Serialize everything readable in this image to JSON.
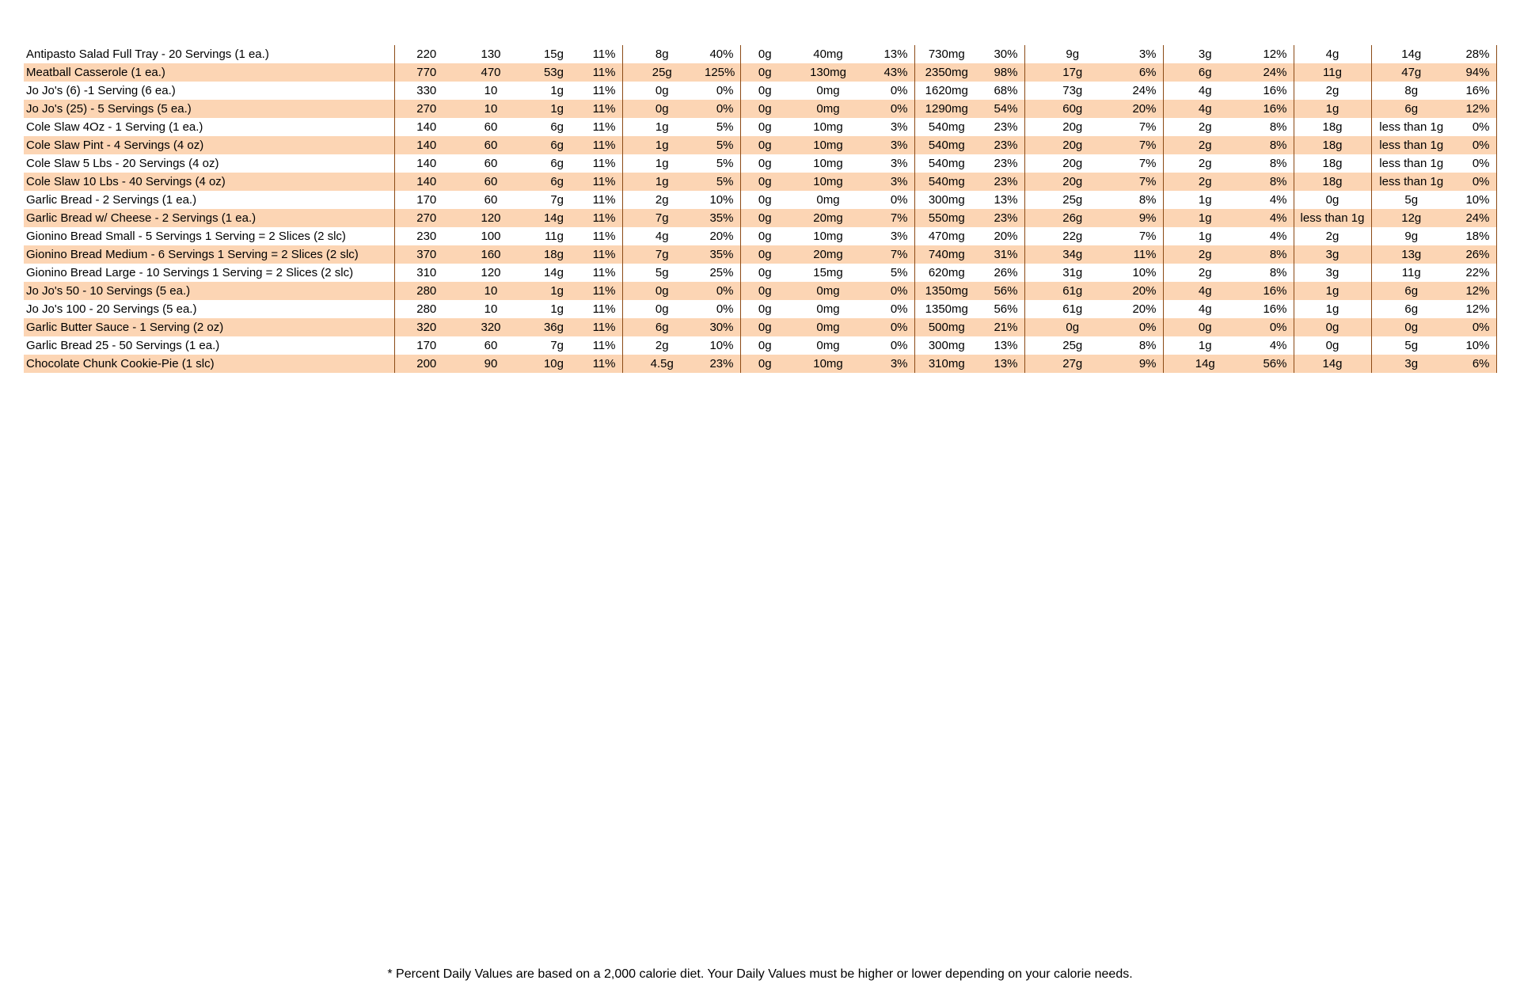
{
  "table": {
    "rows": [
      [
        "Antipasto Salad Full Tray - 20 Servings (1 ea.)",
        "220",
        "130",
        "15g",
        "11%",
        "8g",
        "40%",
        "0g",
        "40mg",
        "13%",
        "730mg",
        "30%",
        "9g",
        "3%",
        "3g",
        "12%",
        "4g",
        "14g",
        "28%"
      ],
      [
        "Meatball Casserole (1 ea.)",
        "770",
        "470",
        "53g",
        "11%",
        "25g",
        "125%",
        "0g",
        "130mg",
        "43%",
        "2350mg",
        "98%",
        "17g",
        "6%",
        "6g",
        "24%",
        "11g",
        "47g",
        "94%"
      ],
      [
        "Jo Jo's (6) -1 Serving (6 ea.)",
        "330",
        "10",
        "1g",
        "11%",
        "0g",
        "0%",
        "0g",
        "0mg",
        "0%",
        "1620mg",
        "68%",
        "73g",
        "24%",
        "4g",
        "16%",
        "2g",
        "8g",
        "16%"
      ],
      [
        "Jo Jo's (25) - 5 Servings (5 ea.)",
        "270",
        "10",
        "1g",
        "11%",
        "0g",
        "0%",
        "0g",
        "0mg",
        "0%",
        "1290mg",
        "54%",
        "60g",
        "20%",
        "4g",
        "16%",
        "1g",
        "6g",
        "12%"
      ],
      [
        "Cole Slaw 4Oz - 1 Serving (1 ea.)",
        "140",
        "60",
        "6g",
        "11%",
        "1g",
        "5%",
        "0g",
        "10mg",
        "3%",
        "540mg",
        "23%",
        "20g",
        "7%",
        "2g",
        "8%",
        "18g",
        "less than 1g",
        "0%"
      ],
      [
        "Cole Slaw Pint - 4 Servings (4 oz)",
        "140",
        "60",
        "6g",
        "11%",
        "1g",
        "5%",
        "0g",
        "10mg",
        "3%",
        "540mg",
        "23%",
        "20g",
        "7%",
        "2g",
        "8%",
        "18g",
        "less than 1g",
        "0%"
      ],
      [
        "Cole Slaw 5 Lbs - 20 Servings (4 oz)",
        "140",
        "60",
        "6g",
        "11%",
        "1g",
        "5%",
        "0g",
        "10mg",
        "3%",
        "540mg",
        "23%",
        "20g",
        "7%",
        "2g",
        "8%",
        "18g",
        "less than 1g",
        "0%"
      ],
      [
        "Cole Slaw 10 Lbs - 40 Servings (4 oz)",
        "140",
        "60",
        "6g",
        "11%",
        "1g",
        "5%",
        "0g",
        "10mg",
        "3%",
        "540mg",
        "23%",
        "20g",
        "7%",
        "2g",
        "8%",
        "18g",
        "less than 1g",
        "0%"
      ],
      [
        "Garlic Bread - 2 Servings (1 ea.)",
        "170",
        "60",
        "7g",
        "11%",
        "2g",
        "10%",
        "0g",
        "0mg",
        "0%",
        "300mg",
        "13%",
        "25g",
        "8%",
        "1g",
        "4%",
        "0g",
        "5g",
        "10%"
      ],
      [
        "Garlic Bread w/ Cheese - 2 Servings (1 ea.)",
        "270",
        "120",
        "14g",
        "11%",
        "7g",
        "35%",
        "0g",
        "20mg",
        "7%",
        "550mg",
        "23%",
        "26g",
        "9%",
        "1g",
        "4%",
        "less than 1g",
        "12g",
        "24%"
      ],
      [
        "Gionino Bread Small - 5 Servings 1 Serving = 2 Slices (2 slc)",
        "230",
        "100",
        "11g",
        "11%",
        "4g",
        "20%",
        "0g",
        "10mg",
        "3%",
        "470mg",
        "20%",
        "22g",
        "7%",
        "1g",
        "4%",
        "2g",
        "9g",
        "18%"
      ],
      [
        "Gionino Bread Medium - 6 Servings 1 Serving = 2 Slices (2 slc)",
        "370",
        "160",
        "18g",
        "11%",
        "7g",
        "35%",
        "0g",
        "20mg",
        "7%",
        "740mg",
        "31%",
        "34g",
        "11%",
        "2g",
        "8%",
        "3g",
        "13g",
        "26%"
      ],
      [
        "Gionino Bread Large - 10 Servings 1 Serving = 2 Slices (2 slc)",
        "310",
        "120",
        "14g",
        "11%",
        "5g",
        "25%",
        "0g",
        "15mg",
        "5%",
        "620mg",
        "26%",
        "31g",
        "10%",
        "2g",
        "8%",
        "3g",
        "11g",
        "22%"
      ],
      [
        "Jo Jo's 50 - 10 Servings (5 ea.)",
        "280",
        "10",
        "1g",
        "11%",
        "0g",
        "0%",
        "0g",
        "0mg",
        "0%",
        "1350mg",
        "56%",
        "61g",
        "20%",
        "4g",
        "16%",
        "1g",
        "6g",
        "12%"
      ],
      [
        "Jo Jo's 100 - 20 Servings (5 ea.)",
        "280",
        "10",
        "1g",
        "11%",
        "0g",
        "0%",
        "0g",
        "0mg",
        "0%",
        "1350mg",
        "56%",
        "61g",
        "20%",
        "4g",
        "16%",
        "1g",
        "6g",
        "12%"
      ],
      [
        "Garlic Butter Sauce - 1 Serving (2 oz)",
        "320",
        "320",
        "36g",
        "11%",
        "6g",
        "30%",
        "0g",
        "0mg",
        "0%",
        "500mg",
        "21%",
        "0g",
        "0%",
        "0g",
        "0%",
        "0g",
        "0g",
        "0%"
      ],
      [
        "Garlic Bread 25 - 50 Servings (1 ea.)",
        "170",
        "60",
        "7g",
        "11%",
        "2g",
        "10%",
        "0g",
        "0mg",
        "0%",
        "300mg",
        "13%",
        "25g",
        "8%",
        "1g",
        "4%",
        "0g",
        "5g",
        "10%"
      ],
      [
        "Chocolate Chunk Cookie-Pie (1 slc)",
        "200",
        "90",
        "10g",
        "11%",
        "4.5g",
        "23%",
        "0g",
        "10mg",
        "3%",
        "310mg",
        "13%",
        "27g",
        "9%",
        "14g",
        "56%",
        "14g",
        "3g",
        "6%"
      ]
    ]
  },
  "footer": "* Percent Daily Values are based on a 2,000 calorie diet. Your Daily Values must be higher or lower depending on your calorie needs."
}
